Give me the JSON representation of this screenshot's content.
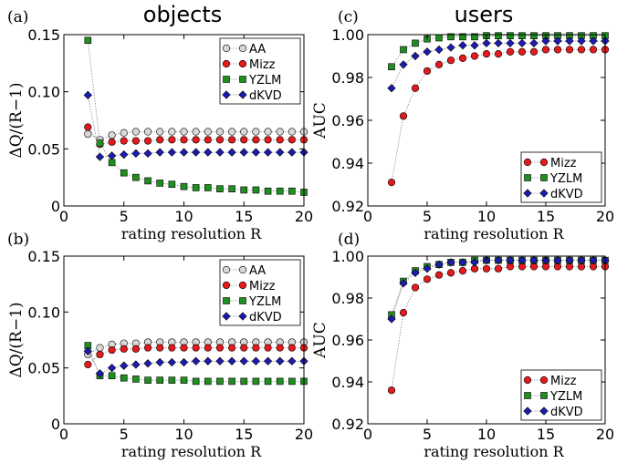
{
  "headings": {
    "left": "objects",
    "right": "users"
  },
  "colors": {
    "AA": "#d8d8d8",
    "Mizz": "#e41a1c",
    "YZLM": "#1f8f1f",
    "dKVD": "#1c1cb4"
  },
  "markers": {
    "AA": "circle",
    "Mizz": "circle",
    "YZLM": "square",
    "dKVD": "diamond"
  },
  "chart_data": [
    {
      "type": "scatter",
      "panel": "(a)",
      "xlabel": "rating resolution R",
      "ylabel": "ΔQ/(R−1)",
      "xlim": [
        0,
        20
      ],
      "ylim": [
        0,
        0.15
      ],
      "xticks": [
        0,
        5,
        10,
        15,
        20
      ],
      "yticks": [
        0,
        0.05,
        0.1,
        0.15
      ],
      "ytick_labels": [
        "0",
        "0.05",
        "0.10",
        "0.15"
      ],
      "legend": "top-right",
      "x": [
        2,
        3,
        4,
        5,
        6,
        7,
        8,
        9,
        10,
        11,
        12,
        13,
        14,
        15,
        16,
        17,
        18,
        19,
        20
      ],
      "series": [
        {
          "name": "AA",
          "values": [
            0.063,
            0.058,
            0.062,
            0.064,
            0.065,
            0.065,
            0.065,
            0.065,
            0.065,
            0.065,
            0.065,
            0.065,
            0.065,
            0.065,
            0.065,
            0.065,
            0.065,
            0.065,
            0.065
          ]
        },
        {
          "name": "Mizz",
          "values": [
            0.069,
            0.054,
            0.056,
            0.057,
            0.057,
            0.057,
            0.058,
            0.058,
            0.058,
            0.058,
            0.058,
            0.058,
            0.058,
            0.058,
            0.058,
            0.058,
            0.058,
            0.058,
            0.058
          ]
        },
        {
          "name": "YZLM",
          "values": [
            0.145,
            0.055,
            0.038,
            0.029,
            0.025,
            0.022,
            0.02,
            0.019,
            0.017,
            0.016,
            0.016,
            0.015,
            0.015,
            0.014,
            0.014,
            0.013,
            0.013,
            0.013,
            0.012
          ]
        },
        {
          "name": "dKVD",
          "values": [
            0.097,
            0.043,
            0.044,
            0.045,
            0.046,
            0.046,
            0.047,
            0.047,
            0.047,
            0.047,
            0.047,
            0.047,
            0.047,
            0.047,
            0.047,
            0.047,
            0.047,
            0.047,
            0.047
          ]
        }
      ]
    },
    {
      "type": "scatter",
      "panel": "(c)",
      "xlabel": "rating resolution R",
      "ylabel": "AUC",
      "xlim": [
        0,
        20
      ],
      "ylim": [
        0.92,
        1.0
      ],
      "xticks": [
        0,
        5,
        10,
        15,
        20
      ],
      "yticks": [
        0.92,
        0.94,
        0.96,
        0.98,
        1.0
      ],
      "ytick_labels": [
        "0.92",
        "0.94",
        "0.96",
        "0.98",
        "1.00"
      ],
      "legend": "bottom-right",
      "x": [
        2,
        3,
        4,
        5,
        6,
        7,
        8,
        9,
        10,
        11,
        12,
        13,
        14,
        15,
        16,
        17,
        18,
        19,
        20
      ],
      "series": [
        {
          "name": "Mizz",
          "values": [
            0.931,
            0.962,
            0.975,
            0.983,
            0.986,
            0.988,
            0.989,
            0.99,
            0.991,
            0.991,
            0.992,
            0.992,
            0.992,
            0.993,
            0.993,
            0.993,
            0.993,
            0.993,
            0.993
          ]
        },
        {
          "name": "YZLM",
          "values": [
            0.985,
            0.993,
            0.996,
            0.998,
            0.9985,
            0.999,
            0.999,
            0.999,
            0.9995,
            0.9995,
            0.9995,
            0.9995,
            0.9995,
            0.9995,
            0.9995,
            0.9995,
            0.9995,
            0.9995,
            0.9995
          ]
        },
        {
          "name": "dKVD",
          "values": [
            0.975,
            0.986,
            0.99,
            0.992,
            0.993,
            0.994,
            0.995,
            0.995,
            0.996,
            0.996,
            0.996,
            0.996,
            0.996,
            0.997,
            0.997,
            0.997,
            0.997,
            0.997,
            0.997
          ]
        }
      ]
    },
    {
      "type": "scatter",
      "panel": "(b)",
      "xlabel": "rating resolution R",
      "ylabel": "ΔQ/(R−1)",
      "xlim": [
        0,
        20
      ],
      "ylim": [
        0,
        0.15
      ],
      "xticks": [
        0,
        5,
        10,
        15,
        20
      ],
      "yticks": [
        0,
        0.05,
        0.1,
        0.15
      ],
      "ytick_labels": [
        "0",
        "0.05",
        "0.10",
        "0.15"
      ],
      "legend": "top-right",
      "x": [
        2,
        3,
        4,
        5,
        6,
        7,
        8,
        9,
        10,
        11,
        12,
        13,
        14,
        15,
        16,
        17,
        18,
        19,
        20
      ],
      "series": [
        {
          "name": "AA",
          "values": [
            0.062,
            0.068,
            0.071,
            0.072,
            0.072,
            0.073,
            0.073,
            0.073,
            0.073,
            0.073,
            0.073,
            0.073,
            0.073,
            0.073,
            0.073,
            0.073,
            0.073,
            0.073,
            0.073
          ]
        },
        {
          "name": "Mizz",
          "values": [
            0.053,
            0.062,
            0.066,
            0.067,
            0.067,
            0.068,
            0.068,
            0.068,
            0.068,
            0.068,
            0.068,
            0.068,
            0.068,
            0.068,
            0.068,
            0.068,
            0.068,
            0.068,
            0.068
          ]
        },
        {
          "name": "YZLM",
          "values": [
            0.07,
            0.043,
            0.043,
            0.041,
            0.04,
            0.039,
            0.039,
            0.039,
            0.039,
            0.038,
            0.038,
            0.038,
            0.038,
            0.038,
            0.038,
            0.038,
            0.038,
            0.038,
            0.038
          ]
        },
        {
          "name": "dKVD",
          "values": [
            0.065,
            0.045,
            0.05,
            0.052,
            0.053,
            0.054,
            0.055,
            0.055,
            0.055,
            0.056,
            0.056,
            0.056,
            0.056,
            0.056,
            0.056,
            0.056,
            0.056,
            0.056,
            0.056
          ]
        }
      ]
    },
    {
      "type": "scatter",
      "panel": "(d)",
      "xlabel": "rating resolution R",
      "ylabel": "AUC",
      "xlim": [
        0,
        20
      ],
      "ylim": [
        0.92,
        1.0
      ],
      "xticks": [
        0,
        5,
        10,
        15,
        20
      ],
      "yticks": [
        0.92,
        0.94,
        0.96,
        0.98,
        1.0
      ],
      "ytick_labels": [
        "0.92",
        "0.94",
        "0.96",
        "0.98",
        "1.00"
      ],
      "legend": "bottom-right",
      "x": [
        2,
        3,
        4,
        5,
        6,
        7,
        8,
        9,
        10,
        11,
        12,
        13,
        14,
        15,
        16,
        17,
        18,
        19,
        20
      ],
      "series": [
        {
          "name": "Mizz",
          "values": [
            0.936,
            0.973,
            0.985,
            0.989,
            0.991,
            0.992,
            0.993,
            0.994,
            0.994,
            0.994,
            0.995,
            0.995,
            0.995,
            0.995,
            0.995,
            0.995,
            0.995,
            0.995,
            0.995
          ]
        },
        {
          "name": "YZLM",
          "values": [
            0.972,
            0.988,
            0.993,
            0.995,
            0.996,
            0.997,
            0.997,
            0.998,
            0.998,
            0.998,
            0.998,
            0.998,
            0.998,
            0.998,
            0.998,
            0.998,
            0.998,
            0.998,
            0.998
          ]
        },
        {
          "name": "dKVD",
          "values": [
            0.97,
            0.987,
            0.992,
            0.994,
            0.996,
            0.997,
            0.997,
            0.997,
            0.998,
            0.998,
            0.998,
            0.998,
            0.998,
            0.998,
            0.998,
            0.998,
            0.998,
            0.998,
            0.998
          ]
        }
      ]
    }
  ]
}
